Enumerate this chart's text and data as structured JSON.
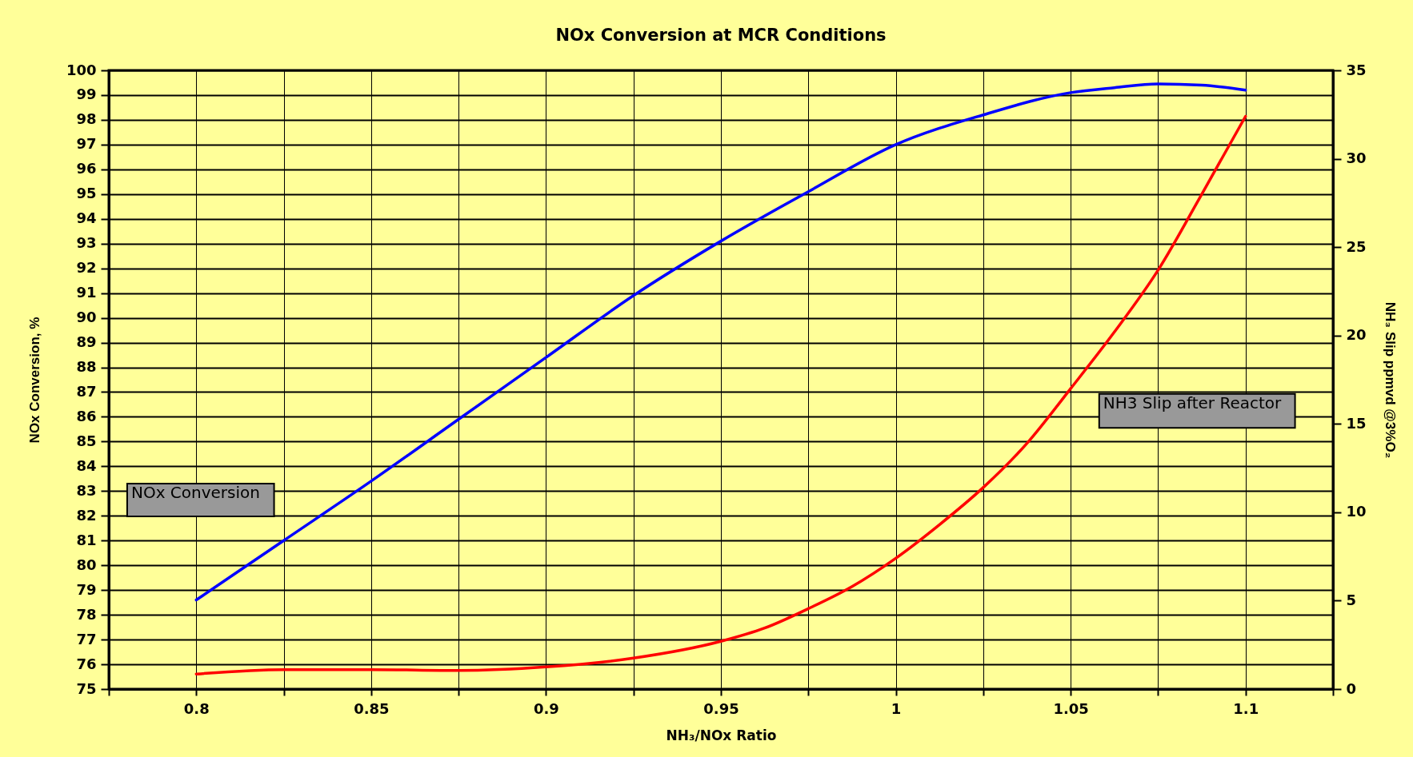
{
  "chart_data": {
    "type": "line",
    "title": "NOx Conversion at MCR Conditions",
    "xlabel": "NH₃/NOx Ratio",
    "ylabel": "NOx Conversion, %",
    "y2label": "NH₃ Slip ppmvd @3%O₂",
    "series": [
      {
        "color": "#0000ff",
        "x": [
          0.8,
          0.825,
          0.85,
          0.875,
          0.9,
          0.925,
          0.95,
          0.975,
          1,
          1.025,
          1.05,
          1.0625,
          1.075,
          1.0875,
          1.1
        ],
        "values": [
          78.6,
          81.0,
          83.4,
          85.9,
          88.4,
          90.9,
          93.1,
          95.1,
          97.0,
          98.2,
          99.1,
          99.3,
          99.45,
          99.4,
          99.2
        ]
      },
      {
        "color": "#ff0000",
        "axis": "y2",
        "x": [
          0.8,
          0.825,
          0.85,
          0.875,
          0.9,
          0.925,
          0.95,
          0.9625,
          0.975,
          0.9875,
          1,
          1.0125,
          1.025,
          1.0375,
          1.05,
          1.0625,
          1.075,
          1.0875,
          1.1
        ],
        "values": [
          0.85,
          1.1,
          1.1,
          1.05,
          1.25,
          1.75,
          2.7,
          3.45,
          4.55,
          5.8,
          7.4,
          9.3,
          11.4,
          13.9,
          17.0,
          20.2,
          23.7,
          28.0,
          32.4
        ]
      }
    ],
    "annotations": [
      "NOx Conversion",
      "NH3 Slip after Reactor"
    ],
    "xlim": [
      0.775,
      1.125
    ],
    "xticks": [
      {
        "value": 0.775,
        "label": null
      },
      0.8,
      {
        "value": 0.825,
        "label": null
      },
      0.85,
      {
        "value": 0.875,
        "label": null
      },
      0.9,
      {
        "value": 0.925,
        "label": null
      },
      0.95,
      {
        "value": 0.975,
        "label": null
      },
      1,
      {
        "value": 1.025,
        "label": null
      },
      1.05,
      {
        "value": 1.075,
        "label": null
      },
      1.1,
      {
        "value": 1.125,
        "label": null
      }
    ],
    "ylim": [
      75,
      100
    ],
    "yticks": [
      75,
      76,
      77,
      78,
      79,
      80,
      81,
      82,
      83,
      84,
      85,
      86,
      87,
      88,
      89,
      90,
      91,
      92,
      93,
      94,
      95,
      96,
      97,
      98,
      99,
      100
    ],
    "y2lim": [
      0,
      35
    ],
    "y2ticks": [
      0,
      5,
      10,
      15,
      20,
      25,
      30,
      35
    ],
    "grid": true
  }
}
